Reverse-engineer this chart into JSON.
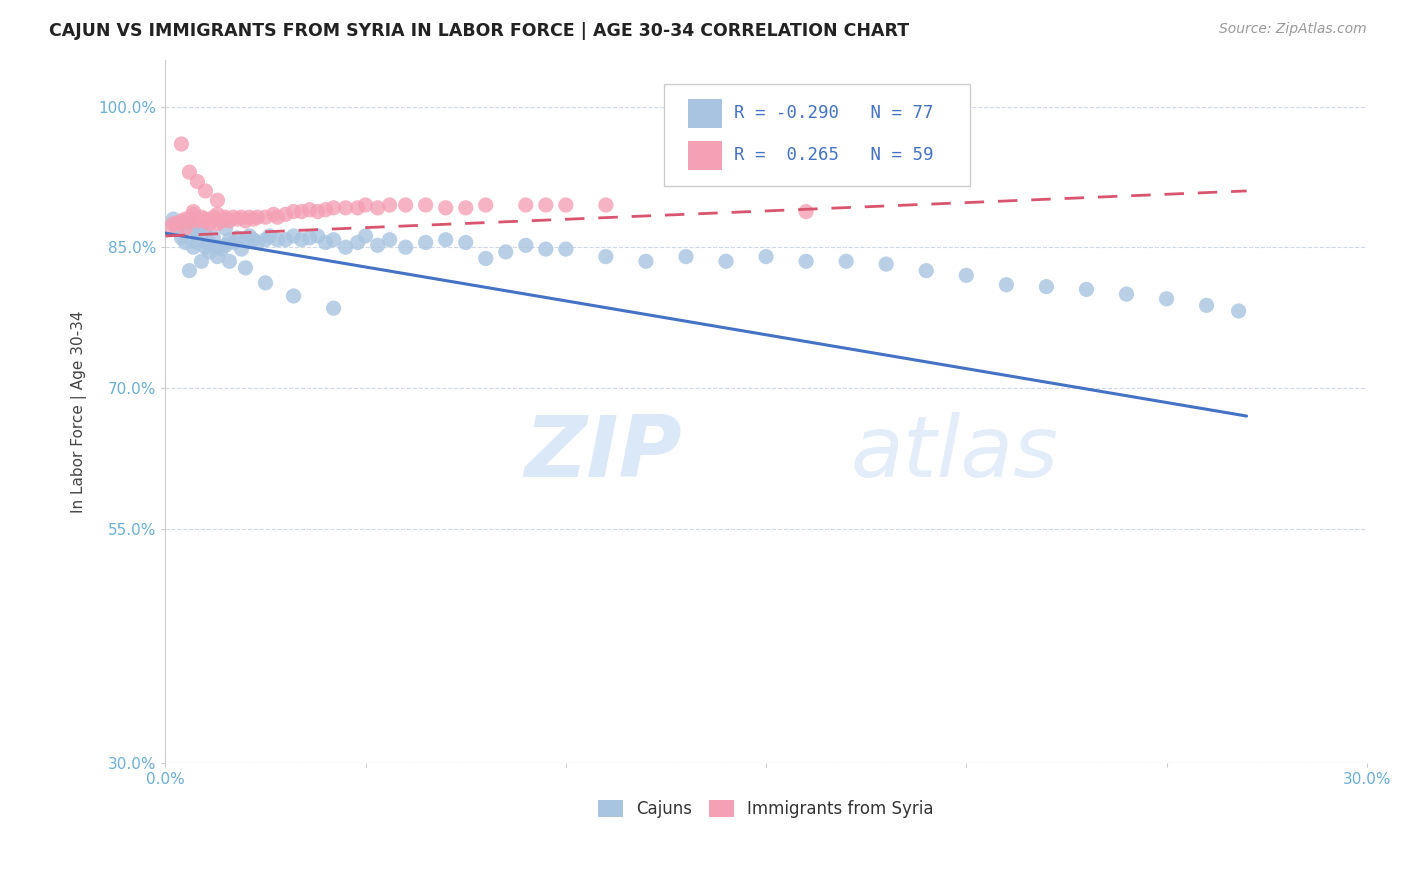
{
  "title": "CAJUN VS IMMIGRANTS FROM SYRIA IN LABOR FORCE | AGE 30-34 CORRELATION CHART",
  "source": "Source: ZipAtlas.com",
  "ylabel": "In Labor Force | Age 30-34",
  "xlim": [
    0.0,
    0.3
  ],
  "ylim": [
    0.3,
    1.05
  ],
  "xticks": [
    0.0,
    0.05,
    0.1,
    0.15,
    0.2,
    0.25,
    0.3
  ],
  "xticklabels": [
    "0.0%",
    "",
    "",
    "",
    "",
    "",
    "30.0%"
  ],
  "yticks": [
    0.3,
    0.55,
    0.7,
    0.85,
    1.0
  ],
  "yticklabels": [
    "30.0%",
    "55.0%",
    "70.0%",
    "85.0%",
    "100.0%"
  ],
  "cajun_R": -0.29,
  "cajun_N": 77,
  "syria_R": 0.265,
  "syria_N": 59,
  "cajun_color": "#a8c4e0",
  "syria_color": "#f4a0b5",
  "cajun_line_color": "#4472c4",
  "syria_line_color": "#d9546e",
  "legend_label_cajun": "Cajuns",
  "legend_label_syria": "Immigrants from Syria",
  "watermark_zip": "ZIP",
  "watermark_atlas": "atlas",
  "background_color": "#ffffff",
  "grid_color": "#d0d8e8",
  "cajun_x": [
    0.002,
    0.003,
    0.004,
    0.005,
    0.005,
    0.006,
    0.007,
    0.007,
    0.008,
    0.008,
    0.009,
    0.01,
    0.01,
    0.011,
    0.012,
    0.013,
    0.014,
    0.015,
    0.015,
    0.016,
    0.017,
    0.018,
    0.019,
    0.02,
    0.021,
    0.022,
    0.023,
    0.025,
    0.026,
    0.028,
    0.03,
    0.032,
    0.034,
    0.036,
    0.038,
    0.04,
    0.042,
    0.045,
    0.048,
    0.05,
    0.053,
    0.056,
    0.06,
    0.065,
    0.07,
    0.075,
    0.08,
    0.085,
    0.09,
    0.095,
    0.1,
    0.11,
    0.12,
    0.13,
    0.14,
    0.15,
    0.16,
    0.17,
    0.18,
    0.19,
    0.2,
    0.21,
    0.22,
    0.23,
    0.24,
    0.25,
    0.26,
    0.268,
    0.006,
    0.009,
    0.011,
    0.013,
    0.016,
    0.02,
    0.025,
    0.032,
    0.042
  ],
  "cajun_y": [
    0.88,
    0.87,
    0.86,
    0.875,
    0.855,
    0.88,
    0.87,
    0.85,
    0.865,
    0.855,
    0.87,
    0.865,
    0.85,
    0.855,
    0.86,
    0.85,
    0.848,
    0.87,
    0.852,
    0.858,
    0.855,
    0.86,
    0.848,
    0.858,
    0.862,
    0.858,
    0.855,
    0.858,
    0.862,
    0.858,
    0.858,
    0.862,
    0.858,
    0.86,
    0.862,
    0.855,
    0.858,
    0.85,
    0.855,
    0.862,
    0.852,
    0.858,
    0.85,
    0.855,
    0.858,
    0.855,
    0.838,
    0.845,
    0.852,
    0.848,
    0.848,
    0.84,
    0.835,
    0.84,
    0.835,
    0.84,
    0.835,
    0.835,
    0.832,
    0.825,
    0.82,
    0.81,
    0.808,
    0.805,
    0.8,
    0.795,
    0.788,
    0.782,
    0.825,
    0.835,
    0.845,
    0.84,
    0.835,
    0.828,
    0.812,
    0.798,
    0.785
  ],
  "syria_x": [
    0.001,
    0.002,
    0.003,
    0.004,
    0.005,
    0.005,
    0.006,
    0.007,
    0.007,
    0.008,
    0.008,
    0.009,
    0.01,
    0.01,
    0.011,
    0.012,
    0.013,
    0.013,
    0.014,
    0.015,
    0.015,
    0.016,
    0.017,
    0.018,
    0.019,
    0.02,
    0.021,
    0.022,
    0.023,
    0.025,
    0.027,
    0.028,
    0.03,
    0.032,
    0.034,
    0.036,
    0.038,
    0.04,
    0.042,
    0.045,
    0.048,
    0.05,
    0.053,
    0.056,
    0.06,
    0.065,
    0.07,
    0.075,
    0.08,
    0.09,
    0.095,
    0.1,
    0.11,
    0.16,
    0.004,
    0.006,
    0.008,
    0.01,
    0.013
  ],
  "syria_y": [
    0.87,
    0.875,
    0.875,
    0.878,
    0.87,
    0.88,
    0.878,
    0.888,
    0.885,
    0.878,
    0.88,
    0.882,
    0.878,
    0.88,
    0.875,
    0.882,
    0.875,
    0.885,
    0.878,
    0.882,
    0.88,
    0.878,
    0.882,
    0.88,
    0.882,
    0.878,
    0.882,
    0.88,
    0.882,
    0.882,
    0.885,
    0.882,
    0.885,
    0.888,
    0.888,
    0.89,
    0.888,
    0.89,
    0.892,
    0.892,
    0.892,
    0.895,
    0.892,
    0.895,
    0.895,
    0.895,
    0.892,
    0.892,
    0.895,
    0.895,
    0.895,
    0.895,
    0.895,
    0.888,
    0.96,
    0.93,
    0.92,
    0.91,
    0.9
  ],
  "cajun_line_x0": 0.0,
  "cajun_line_y0": 0.865,
  "cajun_line_x1": 0.27,
  "cajun_line_y1": 0.67,
  "syria_line_x0": 0.0,
  "syria_line_y0": 0.862,
  "syria_line_x1": 0.27,
  "syria_line_y1": 0.91
}
